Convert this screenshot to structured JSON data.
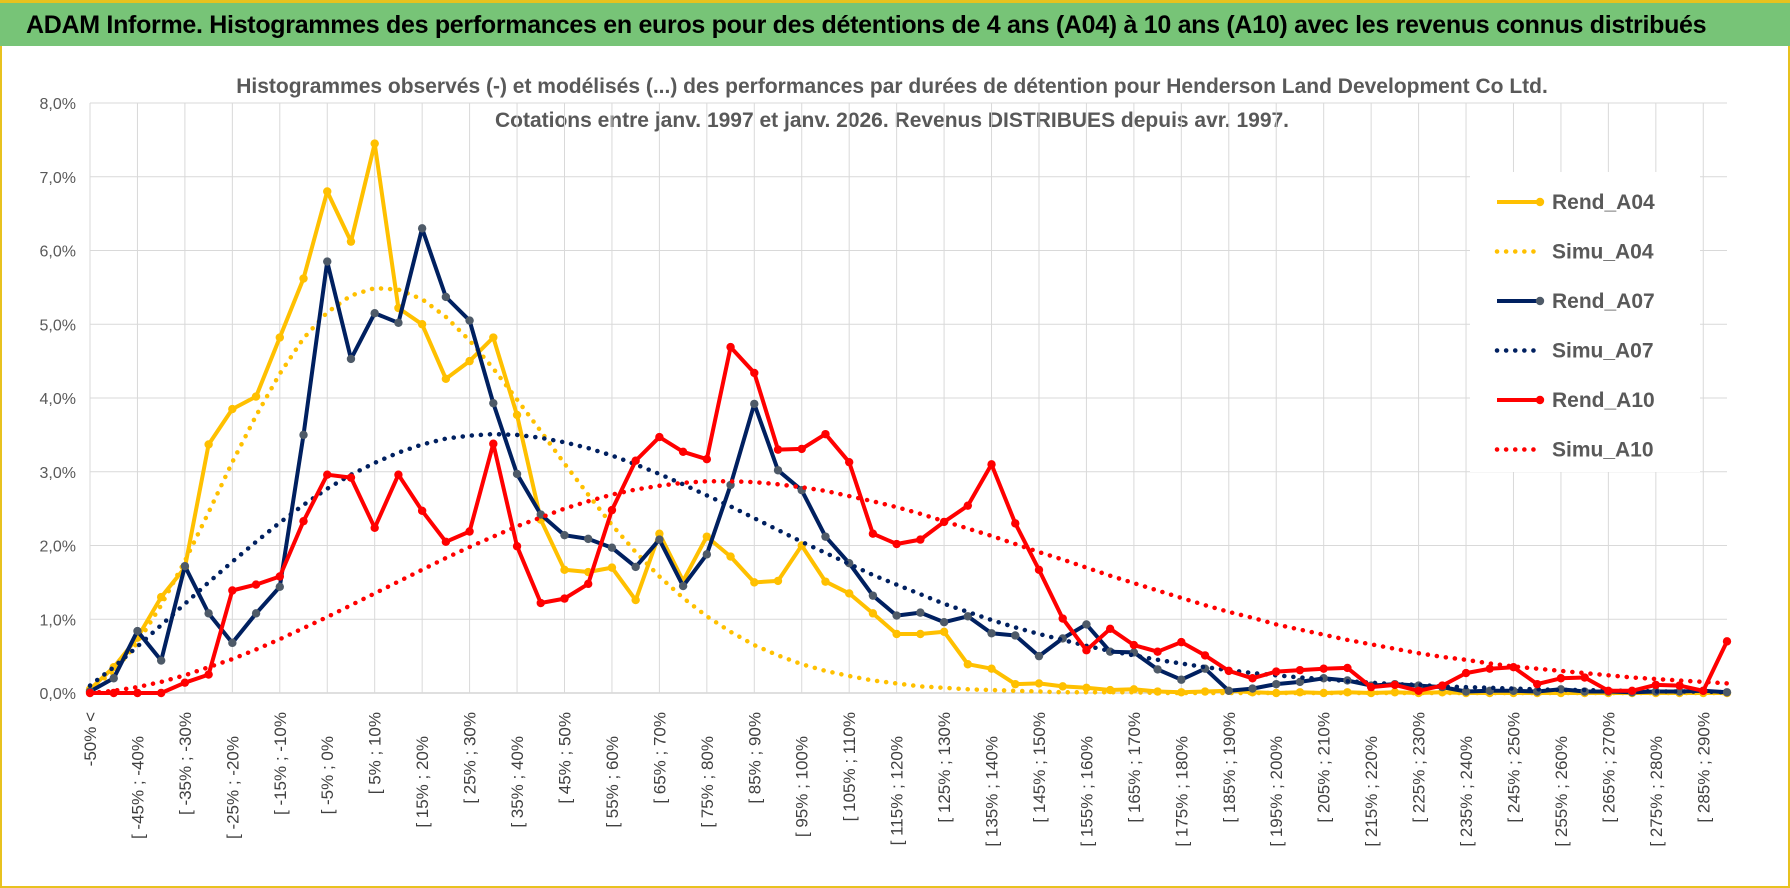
{
  "header": {
    "title": "ADAM Informe. Histogrammes des performances en euros pour des détentions de 4 ans (A04) à 10 ans (A10) avec les revenus connus distribués"
  },
  "colors": {
    "banner": "#77c477",
    "frame": "#e8c21f",
    "A04": "#FFC000",
    "A07": "#002060",
    "A10": "#FF0000",
    "grid": "#d9d9d9"
  },
  "chart_data": {
    "type": "line",
    "title_lines": [
      "Histogrammes observés (-) et modélisés (...) des performances par durées de détention pour Henderson Land Development Co Ltd.",
      "Cotations entre janv. 1997 et janv. 2026. Revenus DISTRIBUES depuis avr. 1997."
    ],
    "xlabel": "",
    "ylabel": "",
    "ylim": [
      0,
      8
    ],
    "yticks": [
      "0,0%",
      "1,0%",
      "2,0%",
      "3,0%",
      "4,0%",
      "5,0%",
      "6,0%",
      "7,0%",
      "8,0%"
    ],
    "grid": true,
    "legend_position": "right",
    "x_labels": [
      "-50% <",
      "[ -45% ; -40%",
      "[ -35% ; -30%",
      "[ -25% ; -20%",
      "[ -15% ; -10%",
      "[ -5% ; 0%",
      "[ 5% ; 10%",
      "[ 15% ; 20%",
      "[ 25% ; 30%",
      "[ 35% ; 40%",
      "[ 45% ; 50%",
      "[ 55% ; 60%",
      "[ 65% ; 70%",
      "[ 75% ; 80%",
      "[ 85% ; 90%",
      "[ 95% ; 100%",
      "[ 105% ; 110%",
      "[ 115% ; 120%",
      "[ 125% ; 130%",
      "[ 135% ; 140%",
      "[ 145% ; 150%",
      "[ 155% ; 160%",
      "[ 165% ; 170%",
      "[ 175% ; 180%",
      "[ 185% ; 190%",
      "[ 195% ; 200%",
      "[ 205% ; 210%",
      "[ 215% ; 220%",
      "[ 225% ; 230%",
      "[ 235% ; 240%",
      "[ 245% ; 250%",
      "[ 255% ; 260%",
      "[ 265% ; 270%",
      "[ 275% ; 280%",
      "[ 285% ; 290%"
    ],
    "categories_count": 70,
    "series": [
      {
        "name": "Rend_A04",
        "style": "solid",
        "color": "#FFC000",
        "values": [
          0.05,
          0.35,
          0.75,
          1.3,
          1.7,
          3.37,
          3.85,
          4.02,
          4.82,
          5.62,
          6.8,
          6.12,
          7.45,
          5.22,
          5.0,
          4.26,
          4.5,
          4.82,
          3.77,
          2.35,
          1.67,
          1.64,
          1.7,
          1.26,
          2.16,
          1.52,
          2.12,
          1.85,
          1.5,
          1.52,
          2.0,
          1.51,
          1.35,
          1.08,
          0.8,
          0.8,
          0.83,
          0.39,
          0.33,
          0.12,
          0.13,
          0.09,
          0.07,
          0.04,
          0.05,
          0.02,
          0.01,
          0.02,
          0.03,
          0.01,
          0.0,
          0.01,
          0.0,
          0.01,
          0.0,
          0.01,
          0.0,
          0.01,
          0.0,
          0.0,
          0.0,
          0.0,
          0.0,
          0.0,
          0.0,
          0.0,
          0.0,
          0.0,
          0.0,
          0.0
        ]
      },
      {
        "name": "Simu_A04",
        "style": "dotted",
        "color": "#FFC000",
        "values": [
          0.05,
          0.29,
          0.68,
          1.19,
          1.79,
          2.45,
          3.13,
          3.76,
          4.33,
          4.81,
          5.16,
          5.39,
          5.49,
          5.47,
          5.34,
          5.1,
          4.78,
          4.4,
          3.98,
          3.55,
          3.11,
          2.69,
          2.28,
          1.91,
          1.58,
          1.29,
          1.04,
          0.83,
          0.65,
          0.51,
          0.39,
          0.3,
          0.23,
          0.17,
          0.13,
          0.09,
          0.07,
          0.05,
          0.04,
          0.03,
          0.02,
          0.01,
          0.01,
          0.01,
          0.01,
          0.0,
          0.0,
          0.0,
          0.0,
          0.0,
          0.0,
          0.0,
          0.0,
          0.0,
          0.0,
          0.0,
          0.0,
          0.0,
          0.0,
          0.0,
          0.0,
          0.0,
          0.0,
          0.0,
          0.0,
          0.0,
          0.0,
          0.0,
          0.0,
          0.0
        ]
      },
      {
        "name": "Rend_A07",
        "style": "solid",
        "color": "#002060",
        "values": [
          0.02,
          0.2,
          0.84,
          0.44,
          1.72,
          1.08,
          0.68,
          1.08,
          1.44,
          3.5,
          5.85,
          4.53,
          5.15,
          5.02,
          6.3,
          5.37,
          5.05,
          3.93,
          2.97,
          2.42,
          2.14,
          2.09,
          1.97,
          1.71,
          2.08,
          1.45,
          1.88,
          2.82,
          3.92,
          3.02,
          2.75,
          2.12,
          1.76,
          1.32,
          1.05,
          1.09,
          0.96,
          1.04,
          0.81,
          0.78,
          0.5,
          0.74,
          0.93,
          0.56,
          0.55,
          0.32,
          0.18,
          0.33,
          0.03,
          0.06,
          0.12,
          0.15,
          0.2,
          0.17,
          0.1,
          0.12,
          0.1,
          0.08,
          0.02,
          0.03,
          0.03,
          0.02,
          0.05,
          0.02,
          0.02,
          0.01,
          0.02,
          0.02,
          0.03,
          0.01
        ]
      },
      {
        "name": "Simu_A07",
        "style": "dotted",
        "color": "#002060",
        "values": [
          0.1,
          0.35,
          0.63,
          0.92,
          1.21,
          1.5,
          1.78,
          2.05,
          2.31,
          2.55,
          2.77,
          2.96,
          3.12,
          3.26,
          3.37,
          3.45,
          3.49,
          3.51,
          3.5,
          3.46,
          3.4,
          3.32,
          3.22,
          3.1,
          2.97,
          2.83,
          2.68,
          2.53,
          2.37,
          2.21,
          2.05,
          1.9,
          1.75,
          1.6,
          1.47,
          1.34,
          1.21,
          1.1,
          0.99,
          0.89,
          0.8,
          0.72,
          0.64,
          0.57,
          0.51,
          0.45,
          0.4,
          0.35,
          0.31,
          0.27,
          0.24,
          0.21,
          0.19,
          0.16,
          0.14,
          0.12,
          0.11,
          0.09,
          0.08,
          0.07,
          0.06,
          0.05,
          0.04,
          0.04,
          0.03,
          0.03,
          0.02,
          0.02,
          0.02,
          0.01
        ]
      },
      {
        "name": "Rend_A10",
        "style": "solid",
        "color": "#FF0000",
        "values": [
          0.0,
          0.0,
          0.0,
          0.0,
          0.14,
          0.25,
          1.39,
          1.47,
          1.58,
          2.33,
          2.96,
          2.92,
          2.24,
          2.96,
          2.47,
          2.05,
          2.19,
          3.38,
          1.99,
          1.22,
          1.28,
          1.48,
          2.48,
          3.15,
          3.47,
          3.27,
          3.17,
          4.69,
          4.34,
          3.3,
          3.31,
          3.51,
          3.13,
          2.16,
          2.02,
          2.08,
          2.32,
          2.54,
          3.1,
          2.3,
          1.67,
          1.01,
          0.58,
          0.87,
          0.65,
          0.56,
          0.69,
          0.51,
          0.3,
          0.2,
          0.29,
          0.31,
          0.33,
          0.34,
          0.08,
          0.11,
          0.03,
          0.1,
          0.27,
          0.33,
          0.35,
          0.12,
          0.2,
          0.21,
          0.03,
          0.03,
          0.11,
          0.1,
          0.03,
          0.7
        ]
      },
      {
        "name": "Simu_A10",
        "style": "dotted",
        "color": "#FF0000",
        "values": [
          0.0,
          0.03,
          0.08,
          0.15,
          0.24,
          0.35,
          0.46,
          0.59,
          0.73,
          0.88,
          1.03,
          1.19,
          1.35,
          1.51,
          1.67,
          1.83,
          1.98,
          2.12,
          2.26,
          2.38,
          2.5,
          2.6,
          2.69,
          2.76,
          2.81,
          2.85,
          2.87,
          2.87,
          2.86,
          2.83,
          2.79,
          2.74,
          2.67,
          2.6,
          2.52,
          2.43,
          2.33,
          2.23,
          2.13,
          2.02,
          1.91,
          1.81,
          1.7,
          1.59,
          1.49,
          1.39,
          1.29,
          1.19,
          1.1,
          1.02,
          0.93,
          0.86,
          0.79,
          0.72,
          0.66,
          0.6,
          0.54,
          0.49,
          0.45,
          0.4,
          0.36,
          0.33,
          0.3,
          0.27,
          0.24,
          0.21,
          0.19,
          0.17,
          0.15,
          0.13
        ]
      }
    ]
  }
}
